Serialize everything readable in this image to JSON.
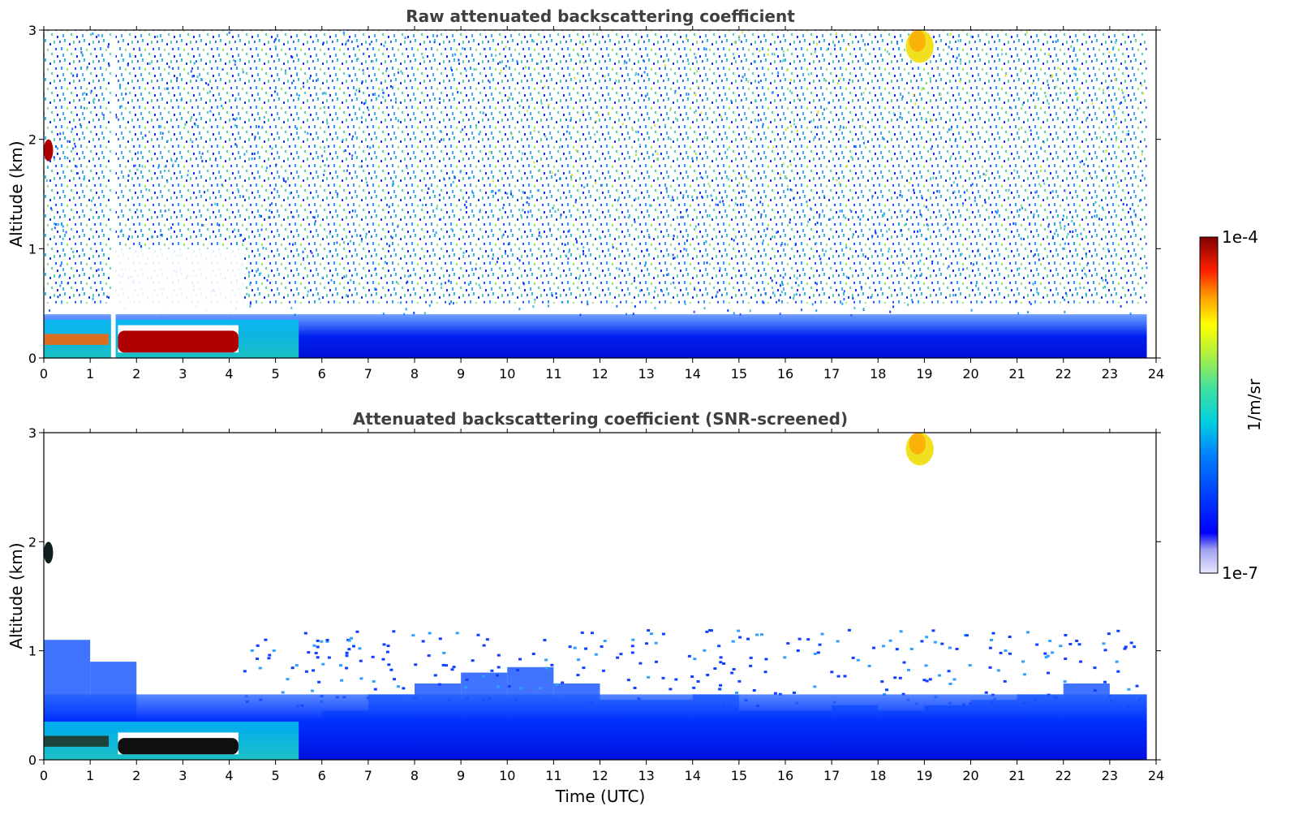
{
  "chart_data": [
    {
      "type": "heatmap",
      "title": "Raw attenuated backscattering coefficient",
      "xlabel": "",
      "ylabel": "Altitude (km)",
      "xlim": [
        0,
        24
      ],
      "ylim": [
        0,
        3
      ],
      "xticks": [
        "0",
        "1",
        "2",
        "3",
        "4",
        "5",
        "6",
        "7",
        "8",
        "9",
        "10",
        "11",
        "12",
        "13",
        "14",
        "15",
        "16",
        "17",
        "18",
        "19",
        "20",
        "21",
        "22",
        "23",
        "24"
      ],
      "yticks": [
        "0",
        "1",
        "2",
        "3"
      ],
      "features": [
        {
          "name": "boundary layer",
          "x": [
            0,
            23.8
          ],
          "y": [
            0,
            0.4
          ],
          "level": 0.3
        },
        {
          "name": "fog layer",
          "x": [
            1.6,
            4.2
          ],
          "y": [
            0.05,
            0.25
          ],
          "level": 1.0
        },
        {
          "name": "cloud",
          "x": [
            0,
            0.2
          ],
          "y": [
            1.8,
            2.0
          ],
          "level": 1.0
        },
        {
          "name": "high aerosol",
          "x": [
            18.6,
            19.2
          ],
          "y": [
            2.7,
            3.0
          ],
          "level": 0.85
        },
        {
          "name": "missing data",
          "x": [
            1.45,
            1.55
          ],
          "y": [
            0,
            3
          ],
          "level": null
        }
      ]
    },
    {
      "type": "heatmap",
      "title": "Attenuated backscattering coefficient (SNR-screened)",
      "xlabel": "Time (UTC)",
      "ylabel": "Altitude (km)",
      "xlim": [
        0,
        24
      ],
      "ylim": [
        0,
        3
      ],
      "xticks": [
        "0",
        "1",
        "2",
        "3",
        "4",
        "5",
        "6",
        "7",
        "8",
        "9",
        "10",
        "11",
        "12",
        "13",
        "14",
        "15",
        "16",
        "17",
        "18",
        "19",
        "20",
        "21",
        "22",
        "23",
        "24"
      ],
      "yticks": [
        "0",
        "1",
        "2",
        "3"
      ],
      "features": [
        {
          "name": "boundary layer",
          "x": [
            0,
            23.8
          ],
          "y": [
            0,
            0.6
          ],
          "level": 0.3
        },
        {
          "name": "fog layer",
          "x": [
            1.6,
            4.2
          ],
          "y": [
            0.05,
            0.2
          ],
          "level": 1.0
        },
        {
          "name": "cloud",
          "x": [
            0,
            0.2
          ],
          "y": [
            1.8,
            2.0
          ],
          "level": 1.0
        },
        {
          "name": "high aerosol",
          "x": [
            18.6,
            19.2
          ],
          "y": [
            2.7,
            3.0
          ],
          "level": 0.85
        }
      ]
    }
  ],
  "colorbar": {
    "max_label": "1e-4",
    "min_label": "1e-7",
    "unit_label": "1/m/sr",
    "colormap": "jet"
  }
}
